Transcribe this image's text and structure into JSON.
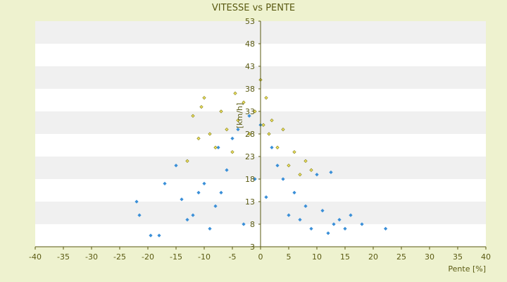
{
  "chart_data": {
    "type": "scatter",
    "title": "VITESSE vs PENTE",
    "xlabel": "Pente [%]",
    "ylabel": "[km/h]",
    "xlim": [
      -40,
      40
    ],
    "ylim": [
      3,
      53
    ],
    "x_ticks": [
      -40,
      -35,
      -30,
      -25,
      -20,
      -15,
      -10,
      -5,
      0,
      5,
      10,
      15,
      20,
      25,
      30,
      35,
      40
    ],
    "y_ticks": [
      3,
      8,
      13,
      18,
      23,
      28,
      33,
      38,
      43,
      48,
      53
    ],
    "grid": "horizontal alternating bands",
    "legend": "none",
    "colors": {
      "background": "#eef2cf",
      "plot_band_light": "#ffffff",
      "plot_band_dark": "#f0f0f0",
      "axis_text": "#5a5a12",
      "series_blue": "#3a8fd8",
      "series_olive": "#7a7a10",
      "series_olive_fill": "#f0e060"
    },
    "series": [
      {
        "color": "#3a8fd8",
        "marker": "diamond",
        "points": [
          [
            -22,
            13
          ],
          [
            -21.5,
            10
          ],
          [
            -19.5,
            5.5
          ],
          [
            -18,
            5.5
          ],
          [
            -17,
            17
          ],
          [
            -15,
            21
          ],
          [
            -14,
            13.5
          ],
          [
            -13,
            9
          ],
          [
            -12,
            10
          ],
          [
            -11,
            15
          ],
          [
            -10,
            17
          ],
          [
            -9,
            7
          ],
          [
            -8,
            12
          ],
          [
            -7.5,
            25
          ],
          [
            -7,
            15
          ],
          [
            -6,
            20
          ],
          [
            -5,
            27
          ],
          [
            -4,
            29
          ],
          [
            -3,
            8
          ],
          [
            -2,
            32
          ],
          [
            -1,
            18
          ],
          [
            0,
            30
          ],
          [
            1,
            14
          ],
          [
            2,
            25
          ],
          [
            3,
            21
          ],
          [
            4,
            18
          ],
          [
            5,
            10
          ],
          [
            6,
            15
          ],
          [
            7,
            9
          ],
          [
            8,
            12
          ],
          [
            9,
            7
          ],
          [
            10,
            19
          ],
          [
            11,
            11
          ],
          [
            12,
            6
          ],
          [
            12.5,
            19.5
          ],
          [
            13,
            8
          ],
          [
            14,
            9
          ],
          [
            15,
            7
          ],
          [
            16,
            10
          ],
          [
            18,
            8
          ],
          [
            22.2,
            7
          ]
        ]
      },
      {
        "color": "#7a7a10",
        "marker": "diamond",
        "points": [
          [
            -13,
            22
          ],
          [
            -12,
            32
          ],
          [
            -11,
            27
          ],
          [
            -10.5,
            34
          ],
          [
            -10,
            36
          ],
          [
            -9,
            28
          ],
          [
            -8,
            25
          ],
          [
            -7,
            33
          ],
          [
            -6,
            29
          ],
          [
            -5,
            24
          ],
          [
            -4.5,
            37
          ],
          [
            -4,
            31
          ],
          [
            -3,
            35
          ],
          [
            -2,
            28
          ],
          [
            -1,
            33
          ],
          [
            0,
            40
          ],
          [
            0.5,
            30
          ],
          [
            1,
            36
          ],
          [
            1.5,
            28
          ],
          [
            2,
            31
          ],
          [
            3,
            25
          ],
          [
            4,
            29
          ],
          [
            5,
            21
          ],
          [
            6,
            24
          ],
          [
            7,
            19
          ],
          [
            8,
            22
          ],
          [
            9,
            20
          ]
        ]
      }
    ]
  }
}
